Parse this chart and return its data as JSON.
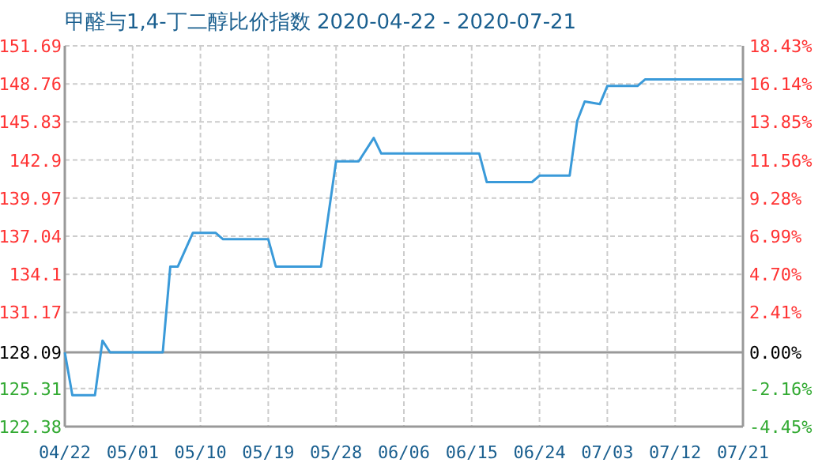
{
  "chart_data": {
    "type": "line",
    "title": "甲醛与1,4-丁二醇比价指数 2020-04-22 - 2020-07-21",
    "x": [
      "2020-04-22",
      "2020-04-23",
      "2020-04-26",
      "2020-04-27",
      "2020-04-28",
      "2020-05-05",
      "2020-05-06",
      "2020-05-07",
      "2020-05-09",
      "2020-05-12",
      "2020-05-13",
      "2020-05-19",
      "2020-05-20",
      "2020-05-26",
      "2020-05-28",
      "2020-05-31",
      "2020-06-02",
      "2020-06-03",
      "2020-06-16",
      "2020-06-17",
      "2020-06-23",
      "2020-06-24",
      "2020-06-28",
      "2020-06-29",
      "2020-06-30",
      "2020-07-02",
      "2020-07-03",
      "2020-07-07",
      "2020-07-08",
      "2020-07-21"
    ],
    "series": [
      {
        "color": "#3a9ad9",
        "values": [
          128.09,
          124.8,
          124.8,
          129.0,
          128.1,
          128.1,
          134.7,
          134.7,
          137.3,
          137.3,
          136.8,
          136.8,
          134.7,
          134.7,
          142.8,
          142.8,
          144.6,
          143.4,
          143.4,
          141.2,
          141.2,
          141.7,
          141.7,
          145.9,
          147.4,
          147.2,
          148.6,
          148.6,
          149.1,
          149.1
        ]
      }
    ],
    "xlim": [
      "2020-04-22",
      "2020-07-21"
    ],
    "xticks": [
      {
        "value": "2020-04-22",
        "label": "04/22"
      },
      {
        "value": "2020-05-01",
        "label": "05/01"
      },
      {
        "value": "2020-05-10",
        "label": "05/10"
      },
      {
        "value": "2020-05-19",
        "label": "05/19"
      },
      {
        "value": "2020-05-28",
        "label": "05/28"
      },
      {
        "value": "2020-06-06",
        "label": "06/06"
      },
      {
        "value": "2020-06-15",
        "label": "06/15"
      },
      {
        "value": "2020-06-24",
        "label": "06/24"
      },
      {
        "value": "2020-07-03",
        "label": "07/03"
      },
      {
        "value": "2020-07-12",
        "label": "07/12"
      },
      {
        "value": "2020-07-21",
        "label": "07/21"
      }
    ],
    "ylim": [
      122.38,
      151.69
    ],
    "yticks": [
      122.38,
      125.31,
      128.09,
      131.17,
      134.1,
      137.04,
      139.97,
      142.9,
      145.83,
      148.76,
      151.69
    ],
    "y2lim": [
      -4.45,
      18.43
    ],
    "y2ticks": [
      {
        "value": -4.45,
        "label": "-4.45%"
      },
      {
        "value": -2.16,
        "label": "-2.16%"
      },
      {
        "value": 0,
        "label": "0.00%"
      },
      {
        "value": 2.41,
        "label": "2.41%"
      },
      {
        "value": 4.7,
        "label": "4.70%"
      },
      {
        "value": 6.99,
        "label": "6.99%"
      },
      {
        "value": 9.28,
        "label": "9.28%"
      },
      {
        "value": 11.56,
        "label": "11.56%"
      },
      {
        "value": 13.85,
        "label": "13.85%"
      },
      {
        "value": 16.14,
        "label": "16.14%"
      },
      {
        "value": 18.43,
        "label": "18.43%"
      }
    ],
    "grid": true,
    "ref_lines": [
      {
        "axis": "y",
        "value": 128.09,
        "color": "#999999"
      }
    ]
  }
}
